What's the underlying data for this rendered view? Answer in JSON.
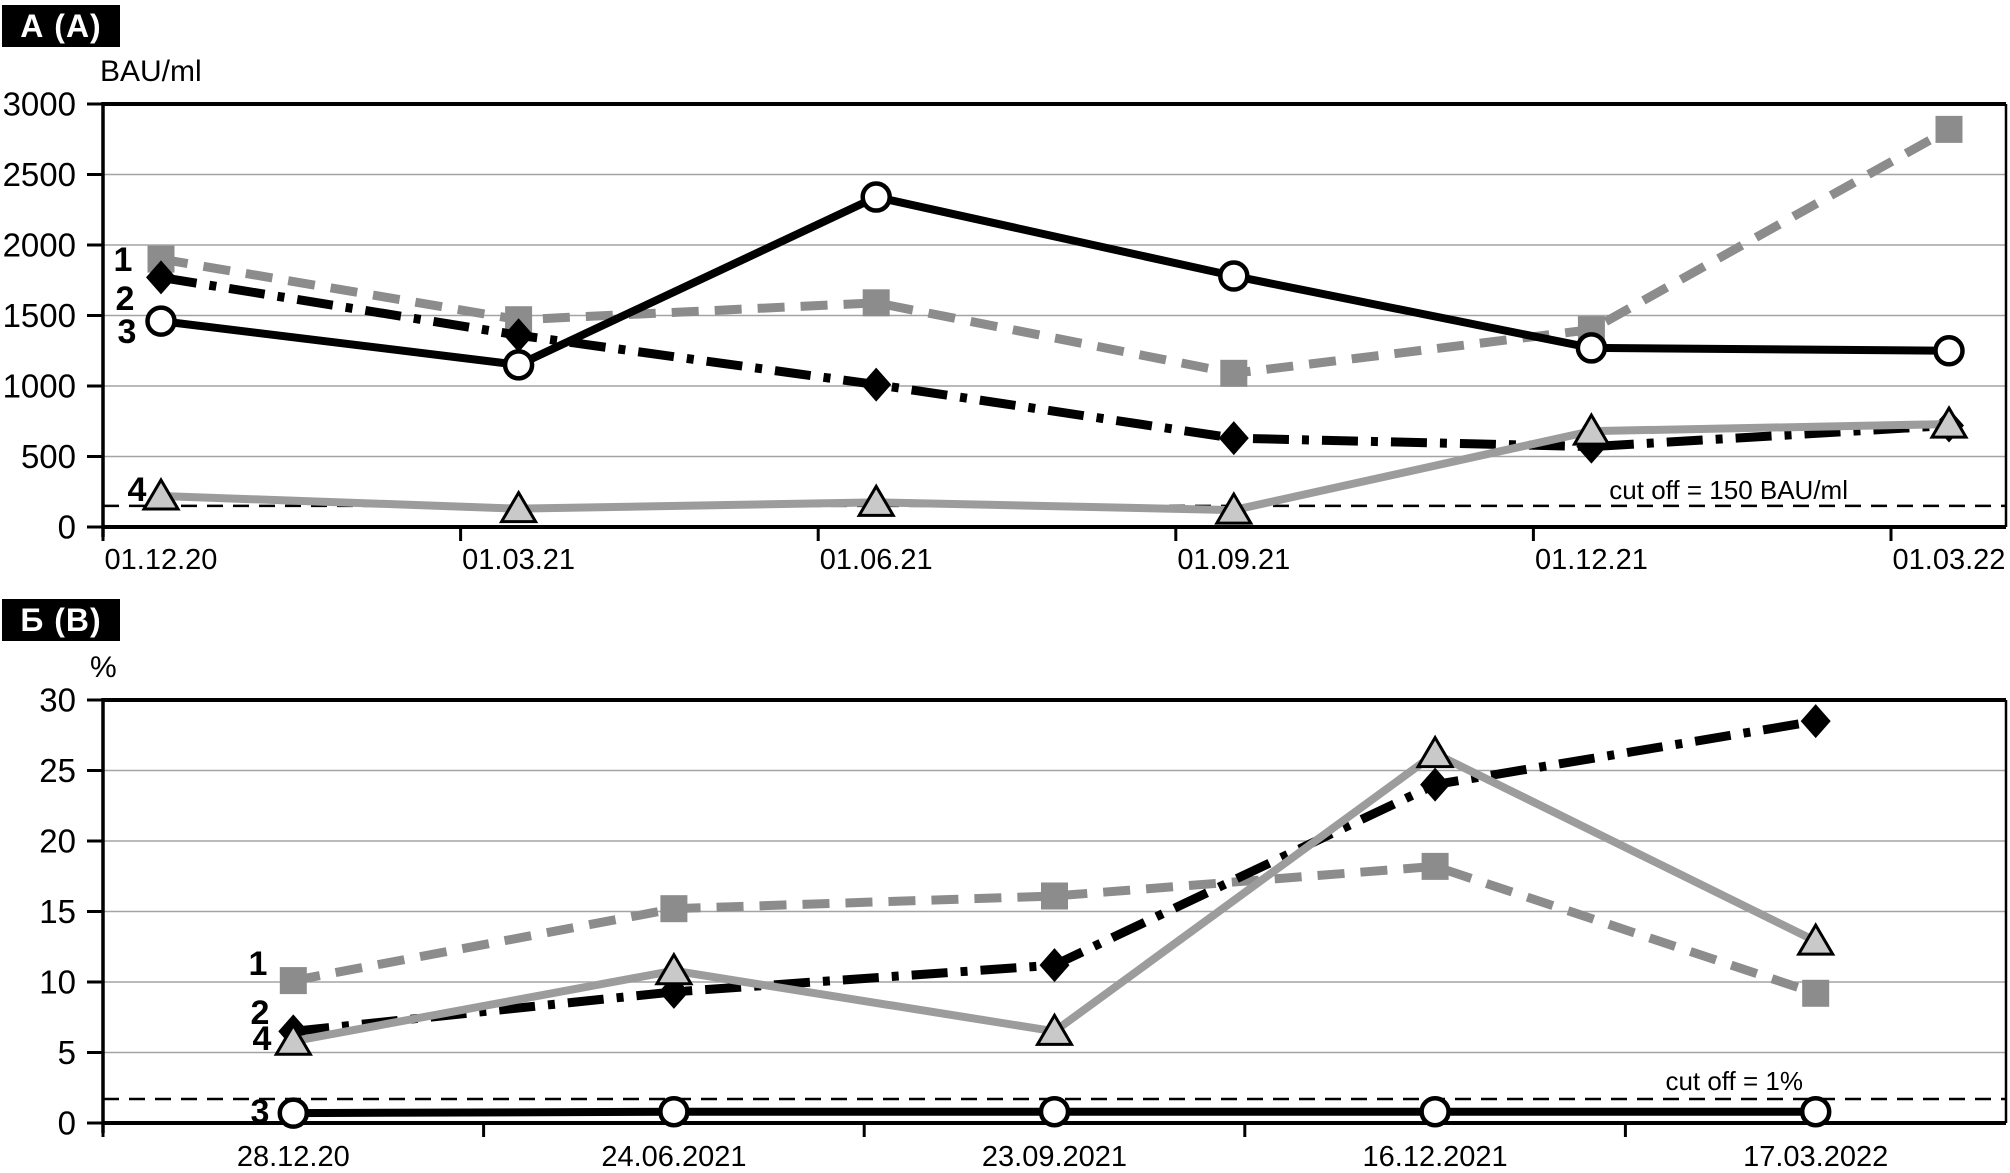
{
  "figure": {
    "colors": {
      "black": "#000000",
      "gray_line": "#8c8c8c",
      "gray_triangle_line": "#9c9c9c",
      "triangle_fill": "#c9c9c9",
      "marker_fill_white": "#ffffff",
      "grid_gray": "#a3a3a3"
    }
  },
  "chart_data": [
    {
      "type": "line",
      "panel_label": "А (A)",
      "ylabel": "BAU/ml",
      "ylim": [
        0,
        3000
      ],
      "y_ticks": [
        3000,
        2500,
        2000,
        1500,
        1000,
        500,
        0
      ],
      "categories": [
        "01.12.20",
        "01.03.21",
        "01.06.21",
        "01.09.21",
        "01.12.21",
        "01.03.22"
      ],
      "grid": true,
      "legend_position": "inline-left",
      "cutoff": {
        "label": "cut off = 150 BAU/ml",
        "value": 150
      },
      "series": [
        {
          "name": "1",
          "style": "dashed-gray-square",
          "values": [
            1900,
            1470,
            1590,
            1090,
            1400,
            2820
          ]
        },
        {
          "name": "2",
          "style": "dashdot-black-diamond",
          "values": [
            1770,
            1360,
            1010,
            630,
            570,
            720
          ]
        },
        {
          "name": "3",
          "style": "solid-black-circle",
          "values": [
            1460,
            1150,
            2340,
            1780,
            1270,
            1250
          ]
        },
        {
          "name": "4",
          "style": "solid-gray-triangle",
          "values": [
            220,
            130,
            175,
            120,
            680,
            730
          ]
        }
      ]
    },
    {
      "type": "line",
      "panel_label": "Б (В)",
      "ylabel": "%",
      "ylim": [
        0,
        30
      ],
      "y_ticks": [
        30,
        25,
        20,
        15,
        10,
        5,
        0
      ],
      "categories": [
        "28.12.20",
        "24.06.2021",
        "23.09.2021",
        "16.12.2021",
        "17.03.2022"
      ],
      "grid": true,
      "legend_position": "inline-left",
      "cutoff": {
        "label": "cut off = 1%",
        "value": 1
      },
      "series": [
        {
          "name": "1",
          "style": "dashed-gray-square",
          "values": [
            10.1,
            15.2,
            16.1,
            18.2,
            9.2
          ]
        },
        {
          "name": "2",
          "style": "dashdot-black-diamond",
          "values": [
            6.5,
            9.3,
            11.2,
            24.0,
            28.5
          ]
        },
        {
          "name": "3",
          "style": "solid-black-circle",
          "values": [
            0.7,
            0.8,
            0.8,
            0.8,
            0.8
          ]
        },
        {
          "name": "4",
          "style": "solid-gray-triangle",
          "values": [
            5.8,
            10.8,
            6.5,
            26.2,
            12.9
          ]
        }
      ]
    }
  ]
}
